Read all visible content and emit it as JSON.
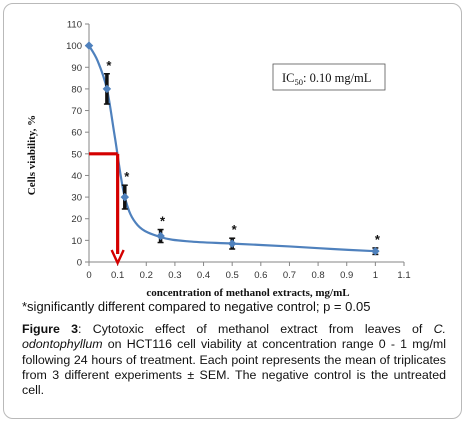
{
  "chart_data": {
    "type": "scatter",
    "x_axis_label": "concentration of methanol extracts, mg/mL",
    "y_axis_label": "Cells viability, %",
    "xlim": [
      0,
      1.1
    ],
    "ylim": [
      0,
      110
    ],
    "x_ticks": [
      "0",
      "0.1",
      "0.2",
      "0.3",
      "0.4",
      "0.5",
      "0.6",
      "0.7",
      "0.8",
      "0.9",
      "1",
      "1.1"
    ],
    "y_ticks": [
      "0",
      "10",
      "20",
      "30",
      "40",
      "50",
      "60",
      "70",
      "80",
      "90",
      "100",
      "110"
    ],
    "points": [
      {
        "x": 0,
        "y": 100,
        "err": 0,
        "star": false
      },
      {
        "x": 0.0625,
        "y": 80,
        "err": 7,
        "star": true
      },
      {
        "x": 0.125,
        "y": 30,
        "err": 5.5,
        "star": true
      },
      {
        "x": 0.25,
        "y": 12,
        "err": 3,
        "star": true
      },
      {
        "x": 0.5,
        "y": 8.5,
        "err": 2.5,
        "star": true
      },
      {
        "x": 1,
        "y": 5,
        "err": 1.5,
        "star": true
      }
    ],
    "fit_curve": [
      [
        0,
        100
      ],
      [
        0.03,
        93
      ],
      [
        0.0625,
        80
      ],
      [
        0.09,
        58
      ],
      [
        0.125,
        30
      ],
      [
        0.17,
        17
      ],
      [
        0.25,
        11.5
      ],
      [
        0.35,
        9.5
      ],
      [
        0.5,
        8.5
      ],
      [
        0.7,
        7.2
      ],
      [
        0.85,
        6
      ],
      [
        1,
        5
      ]
    ],
    "ic50": {
      "x": 0.1,
      "y": 50
    },
    "star_symbol": "*",
    "annotation": {
      "prefix": "IC",
      "subscript": "50",
      "suffix": ": 0.10 mg/mL"
    },
    "colors": {
      "curve": "#4f81bd",
      "marker": "#4f81bd",
      "ic50_lines": "#d40000",
      "error_bar": "#111111",
      "axis": "#868686"
    }
  },
  "footnote": "*significantly different compared to negative control; p = 0.05",
  "caption": {
    "label": "Figure 3",
    "text_1": ": Cytotoxic effect of methanol extract from leaves of ",
    "species": "C. odontophyllum",
    "text_2": " on HCT116 cell viability at concentration range 0 - 1 mg/ml following 24 hours of treatment. Each point represents the mean of triplicates from 3 different experiments ± SEM. The negative control is the untreated cell."
  }
}
